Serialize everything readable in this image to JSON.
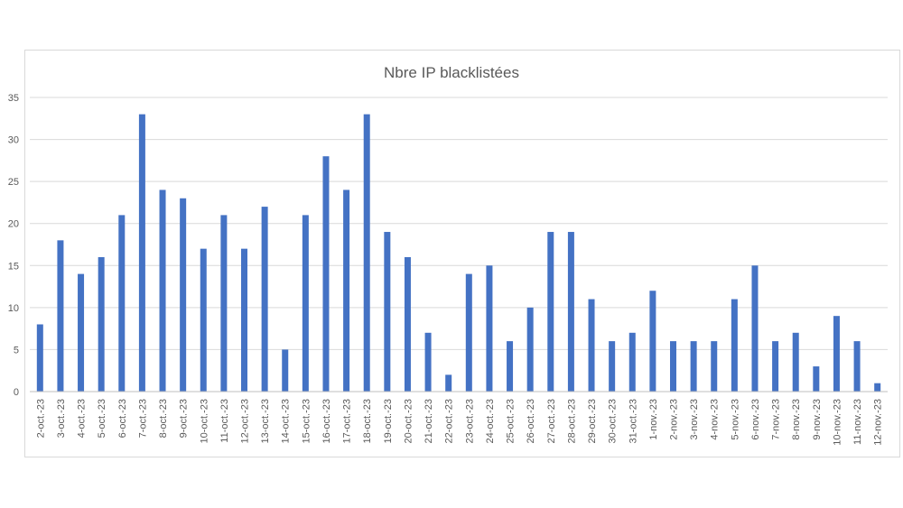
{
  "chart_data": {
    "type": "bar",
    "title": "Nbre IP blacklistées",
    "xlabel": "",
    "ylabel": "",
    "ylim": [
      0,
      35
    ],
    "yticks": [
      0,
      5,
      10,
      15,
      20,
      25,
      30,
      35
    ],
    "grid": true,
    "legend": "none",
    "bar_color": "#4472C4",
    "categories": [
      "2-oct.-23",
      "3-oct.-23",
      "4-oct.-23",
      "5-oct.-23",
      "6-oct.-23",
      "7-oct.-23",
      "8-oct.-23",
      "9-oct.-23",
      "10-oct.-23",
      "11-oct.-23",
      "12-oct.-23",
      "13-oct.-23",
      "14-oct.-23",
      "15-oct.-23",
      "16-oct.-23",
      "17-oct.-23",
      "18-oct.-23",
      "19-oct.-23",
      "20-oct.-23",
      "21-oct.-23",
      "22-oct.-23",
      "23-oct.-23",
      "24-oct.-23",
      "25-oct.-23",
      "26-oct.-23",
      "27-oct.-23",
      "28-oct.-23",
      "29-oct.-23",
      "30-oct.-23",
      "31-oct.-23",
      "1-nov.-23",
      "2-nov.-23",
      "3-nov.-23",
      "4-nov.-23",
      "5-nov.-23",
      "6-nov.-23",
      "7-nov.-23",
      "8-nov.-23",
      "9-nov.-23",
      "10-nov.-23",
      "11-nov.-23",
      "12-nov.-23"
    ],
    "values": [
      8,
      18,
      14,
      16,
      21,
      33,
      24,
      23,
      17,
      21,
      17,
      22,
      5,
      21,
      28,
      24,
      33,
      19,
      16,
      7,
      2,
      14,
      15,
      6,
      10,
      19,
      19,
      11,
      6,
      7,
      12,
      6,
      6,
      6,
      11,
      15,
      6,
      7,
      3,
      9,
      6,
      1
    ]
  }
}
